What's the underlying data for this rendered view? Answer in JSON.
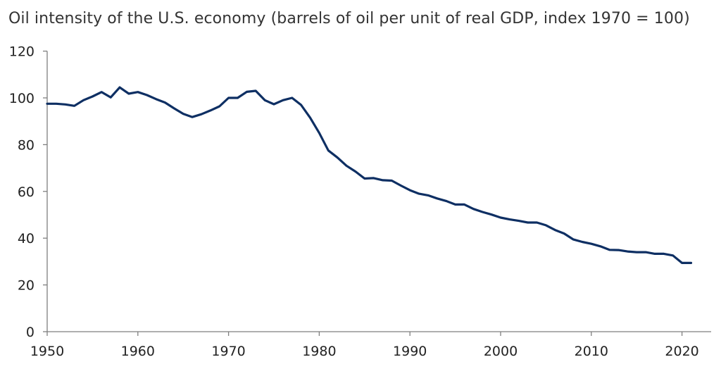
{
  "chart_data": {
    "type": "line",
    "title": "Oil intensity of the U.S. economy (barrels of oil per unit of real GDP, index 1970 = 100)",
    "xlabel": "",
    "ylabel": "",
    "xlim": [
      1950,
      2023
    ],
    "ylim": [
      0,
      120
    ],
    "x_ticks": [
      1950,
      1960,
      1970,
      1980,
      1990,
      2000,
      2010,
      2020
    ],
    "y_ticks": [
      0,
      20,
      40,
      60,
      80,
      100,
      120
    ],
    "grid": false,
    "legend": "none",
    "line_color": "#0e2f63",
    "series": [
      {
        "x": [
          1950,
          1951,
          1952,
          1953,
          1954,
          1955,
          1956,
          1957,
          1958,
          1959,
          1960,
          1961,
          1962,
          1963,
          1964,
          1965,
          1966,
          1967,
          1968,
          1969,
          1970,
          1971,
          1972,
          1973,
          1974,
          1975,
          1976,
          1977,
          1978,
          1979,
          1980,
          1981,
          1982,
          1983,
          1984,
          1985,
          1986,
          1987,
          1988,
          1989,
          1990,
          1991,
          1992,
          1993,
          1994,
          1995,
          1996,
          1997,
          1998,
          1999,
          2000,
          2001,
          2002,
          2003,
          2004,
          2005,
          2006,
          2007,
          2008,
          2009,
          2010,
          2011,
          2012,
          2013,
          2014,
          2015,
          2016,
          2017,
          2018,
          2019,
          2020,
          2021
        ],
        "values": [
          97.5,
          97.5,
          97.2,
          96.6,
          99.0,
          100.6,
          102.5,
          100.2,
          104.5,
          101.8,
          102.5,
          101.2,
          99.5,
          98.0,
          95.5,
          93.2,
          91.8,
          93.0,
          94.6,
          96.4,
          100,
          100,
          102.6,
          103.0,
          99.0,
          97.3,
          99.0,
          100.0,
          97.0,
          91.5,
          85.0,
          77.5,
          74.5,
          71.0,
          68.5,
          65.5,
          65.7,
          64.8,
          64.6,
          62.5,
          60.5,
          59.0,
          58.3,
          57.0,
          55.9,
          54.4,
          54.4,
          52.5,
          51.2,
          50.1,
          48.8,
          48.0,
          47.4,
          46.7,
          46.7,
          45.5,
          43.5,
          42.0,
          39.5,
          38.4,
          37.6,
          36.5,
          35.0,
          34.9,
          34.3,
          34.0,
          34.0,
          33.3,
          33.3,
          32.6,
          29.4,
          29.4
        ]
      }
    ]
  }
}
